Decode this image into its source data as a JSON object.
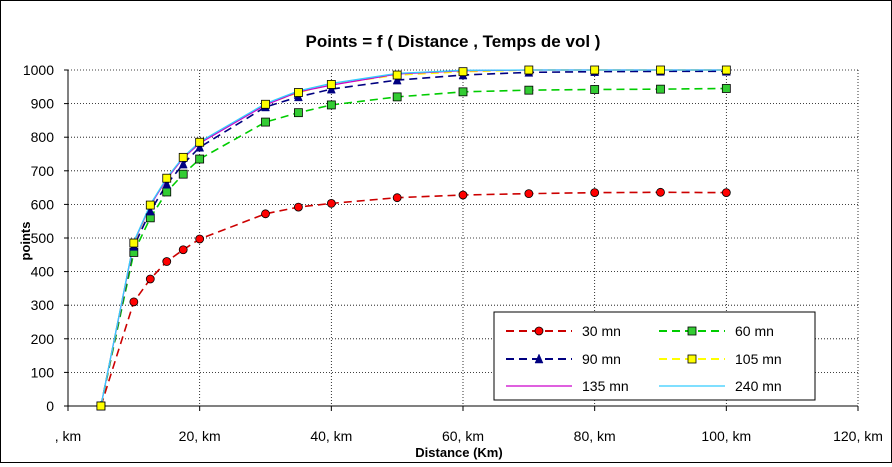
{
  "chart_data": {
    "type": "line",
    "title": "Points  =  f ( Distance , Temps de vol )",
    "xlabel": "Distance (Km)",
    "ylabel": "points",
    "xlim": [
      0,
      120
    ],
    "ylim": [
      0,
      1000
    ],
    "x_ticks": [
      0,
      20,
      40,
      60,
      80,
      100,
      120
    ],
    "x_tick_labels": [
      ", km",
      "20, km",
      "40, km",
      "60, km",
      "80, km",
      "100, km",
      "120, km"
    ],
    "y_ticks": [
      0,
      100,
      200,
      300,
      400,
      500,
      600,
      700,
      800,
      900,
      1000
    ],
    "y_tick_labels": [
      "0",
      "100",
      "200",
      "300",
      "400",
      "500",
      "600",
      "700",
      "800",
      "900",
      "1000"
    ],
    "grid": {
      "horizontal": "dotted",
      "vertical": "dotted"
    },
    "legend_position": "bottom-right",
    "series": [
      {
        "name": "30 mn",
        "color": "#cc0000",
        "marker": "circle",
        "marker_fill": "#ff0000",
        "dash": true,
        "x": [
          5,
          10,
          12.5,
          15,
          17.5,
          20,
          30,
          35,
          40,
          50,
          60,
          70,
          80,
          90,
          100
        ],
        "y": [
          0,
          310,
          378,
          430,
          465,
          497,
          572,
          592,
          603,
          620,
          628,
          632,
          635,
          636,
          635
        ]
      },
      {
        "name": "60 mn",
        "color": "#00cc00",
        "marker": "square",
        "marker_fill": "#33cc33",
        "dash": true,
        "x": [
          5,
          10,
          12.5,
          15,
          17.5,
          20,
          30,
          35,
          40,
          50,
          60,
          70,
          80,
          90,
          100
        ],
        "y": [
          0,
          457,
          560,
          637,
          690,
          735,
          845,
          873,
          896,
          920,
          935,
          940,
          942,
          943,
          945
        ]
      },
      {
        "name": "90 mn",
        "color": "#000080",
        "marker": "triangle",
        "marker_fill": "#000080",
        "dash": true,
        "x": [
          5,
          10,
          12.5,
          15,
          17.5,
          20,
          30,
          35,
          40,
          50,
          60,
          70,
          80,
          90,
          100
        ],
        "y": [
          0,
          475,
          580,
          660,
          720,
          770,
          890,
          920,
          943,
          970,
          985,
          993,
          995,
          996,
          996
        ]
      },
      {
        "name": "105 mn",
        "color": "#ffff00",
        "marker": "square",
        "marker_fill": "#ffff00",
        "dash": true,
        "x": [
          5,
          10,
          12.5,
          15,
          17.5,
          20,
          30,
          35,
          40,
          50,
          60,
          70,
          80,
          90,
          100
        ],
        "y": [
          0,
          485,
          598,
          678,
          740,
          785,
          898,
          933,
          957,
          985,
          995,
          1000,
          1000,
          1000,
          1000
        ]
      },
      {
        "name": "135 mn",
        "color": "#cc00cc",
        "marker": "none",
        "dash": false,
        "x": [
          5,
          10,
          12.5,
          15,
          17.5,
          20,
          30,
          35,
          40,
          50,
          60,
          70,
          80,
          90,
          100
        ],
        "y": [
          0,
          487,
          597,
          676,
          738,
          782,
          896,
          935,
          955,
          988,
          998,
          1000,
          1000,
          1000,
          1000
        ]
      },
      {
        "name": "240 mn",
        "color": "#33ccff",
        "marker": "none",
        "dash": false,
        "x": [
          5,
          10,
          12.5,
          15,
          17.5,
          20,
          30,
          35,
          40,
          50,
          60,
          70,
          80,
          90,
          100
        ],
        "y": [
          0,
          489,
          600,
          679,
          741,
          786,
          900,
          938,
          960,
          990,
          999,
          1000,
          1000,
          1000,
          1000
        ]
      }
    ]
  }
}
